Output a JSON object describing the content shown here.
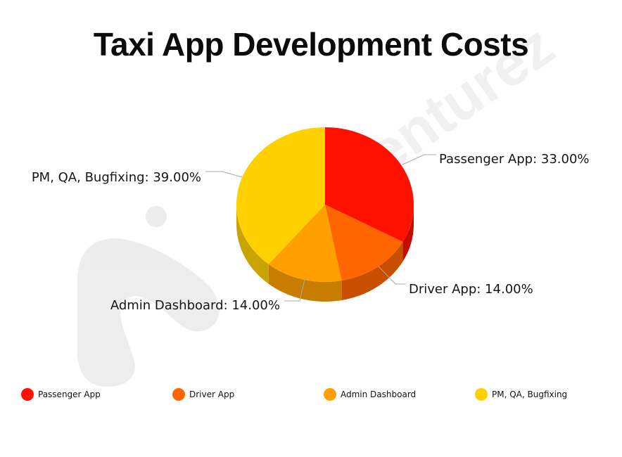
{
  "watermark": {
    "text": "Appventurez"
  },
  "chart_data": {
    "type": "pie",
    "title": "Taxi App Development Costs",
    "slices": [
      {
        "label": "Passenger App",
        "value": 33.0,
        "data_label": "Passenger App: 33.00%",
        "color": "#ff1100",
        "side_color": "#c20d00"
      },
      {
        "label": "Driver App",
        "value": 14.0,
        "data_label": "Driver App: 14.00%",
        "color": "#ff6600",
        "side_color": "#c94f00"
      },
      {
        "label": "Admin Dashboard",
        "value": 14.0,
        "data_label": "Admin Dashboard: 14.00%",
        "color": "#ff9f00",
        "side_color": "#c97d00"
      },
      {
        "label": "PM, QA, Bugfixing",
        "value": 39.0,
        "data_label": "PM, QA, Bugfixing: 39.00%",
        "color": "#ffd000",
        "side_color": "#c9a400"
      }
    ],
    "legend": {
      "position": "bottom",
      "items": [
        "Passenger App",
        "Driver App",
        "Admin Dashboard",
        "PM, QA, Bugfixing"
      ]
    },
    "style": "3d"
  }
}
